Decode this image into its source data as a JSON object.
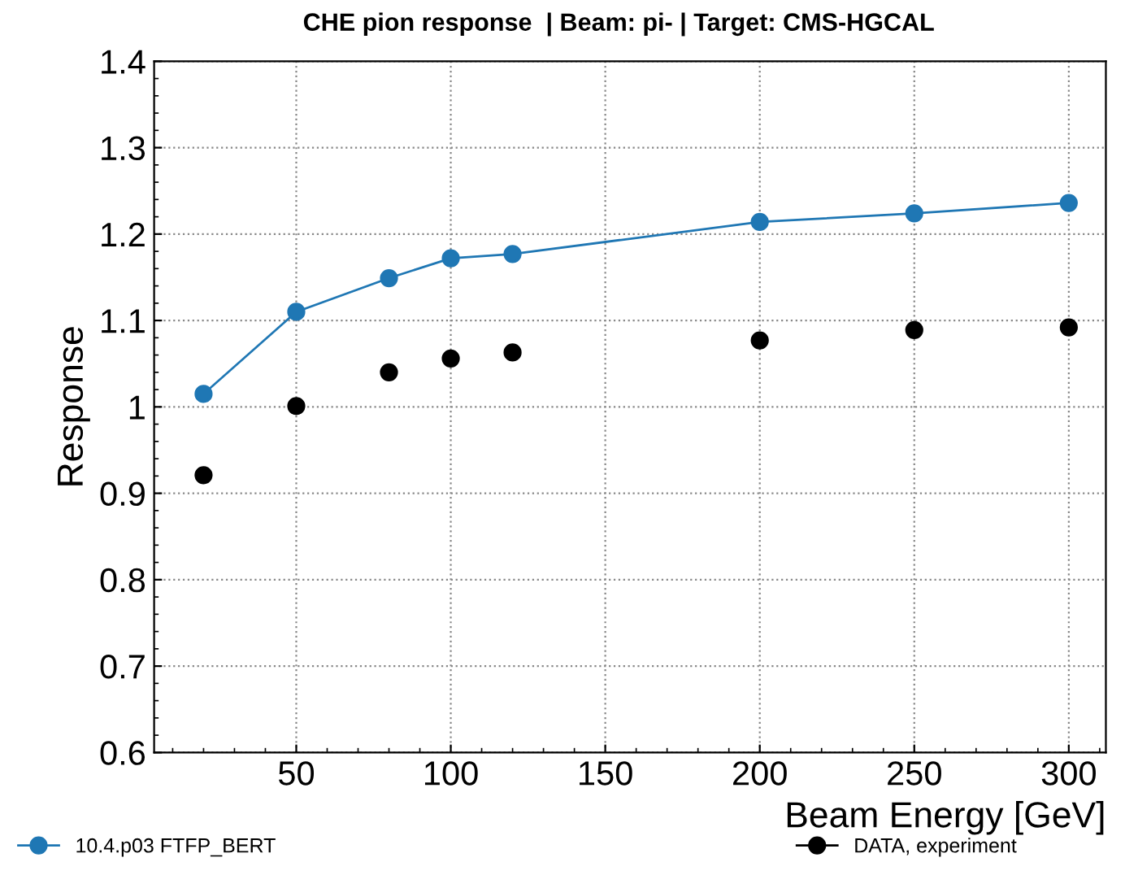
{
  "chart_data": {
    "type": "line",
    "title": "CHE pion response  | Beam: pi- | Target: CMS-HGCAL",
    "xlabel": "Beam Energy [GeV]",
    "ylabel": "Response",
    "x": [
      20,
      50,
      80,
      100,
      120,
      200,
      250,
      300
    ],
    "series": [
      {
        "name": "10.4.p03 FTFP_BERT",
        "color": "#1f77b4",
        "values": [
          1.015,
          1.11,
          1.149,
          1.172,
          1.177,
          1.214,
          1.224,
          1.236
        ]
      },
      {
        "name": "DATA, experiment",
        "color": "#000000",
        "type": "scatter",
        "values": [
          0.921,
          1.001,
          1.04,
          1.056,
          1.063,
          1.077,
          1.089,
          1.092
        ]
      }
    ],
    "xlim": [
      4,
      312
    ],
    "xticks": [
      50,
      100,
      150,
      200,
      250,
      300
    ],
    "ylim": [
      0.6,
      1.4
    ],
    "yticks": [
      0.6,
      0.7,
      0.8,
      0.9,
      1,
      1.1,
      1.2,
      1.3,
      1.4
    ],
    "grid": true,
    "legend": "bottom",
    "marker": "circle",
    "line_style": "solid"
  }
}
